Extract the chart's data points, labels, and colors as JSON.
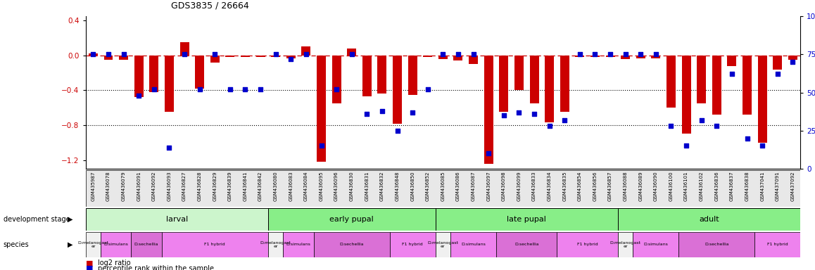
{
  "title": "GDS3835 / 26664",
  "samples": [
    "GSM435987",
    "GSM436078",
    "GSM436079",
    "GSM436091",
    "GSM436092",
    "GSM436093",
    "GSM436827",
    "GSM436828",
    "GSM436829",
    "GSM436839",
    "GSM436841",
    "GSM436842",
    "GSM436080",
    "GSM436083",
    "GSM436084",
    "GSM436095",
    "GSM436096",
    "GSM436830",
    "GSM436831",
    "GSM436832",
    "GSM436848",
    "GSM436850",
    "GSM436852",
    "GSM436085",
    "GSM436086",
    "GSM436087",
    "GSM436097",
    "GSM436098",
    "GSM436099",
    "GSM436833",
    "GSM436834",
    "GSM436835",
    "GSM436854",
    "GSM436856",
    "GSM436857",
    "GSM436088",
    "GSM436089",
    "GSM436090",
    "GSM436100",
    "GSM436101",
    "GSM436102",
    "GSM436836",
    "GSM436837",
    "GSM436838",
    "GSM437041",
    "GSM437091",
    "GSM437092"
  ],
  "log2_ratio": [
    0.02,
    -0.05,
    -0.05,
    -0.48,
    -0.42,
    -0.65,
    0.15,
    -0.38,
    -0.08,
    -0.02,
    -0.02,
    -0.02,
    -0.02,
    -0.03,
    0.1,
    -1.22,
    -0.55,
    0.08,
    -0.47,
    -0.44,
    -0.78,
    -0.45,
    -0.02,
    -0.04,
    -0.06,
    -0.1,
    -1.24,
    -0.65,
    -0.4,
    -0.55,
    -0.77,
    -0.65,
    -0.02,
    -0.02,
    -0.02,
    -0.04,
    -0.03,
    -0.03,
    -0.6,
    -0.9,
    -0.55,
    -0.68,
    -0.12,
    -0.68,
    -1.0,
    -0.16,
    -0.05
  ],
  "percentile": [
    75,
    75,
    75,
    48,
    52,
    14,
    75,
    52,
    75,
    52,
    52,
    52,
    75,
    72,
    75,
    15,
    52,
    75,
    36,
    38,
    25,
    37,
    52,
    75,
    75,
    75,
    10,
    35,
    37,
    36,
    28,
    32,
    75,
    75,
    75,
    75,
    75,
    75,
    28,
    15,
    32,
    28,
    62,
    20,
    15,
    62,
    70
  ],
  "ylim_left": [
    -1.3,
    0.45
  ],
  "ylim_right": [
    0,
    100
  ],
  "yticks_left": [
    0.4,
    0.0,
    -0.4,
    -0.8,
    -1.2
  ],
  "yticks_right": [
    100,
    75,
    50,
    25,
    0
  ],
  "bar_color": "#cc0000",
  "scatter_color": "#0000cc",
  "development_stages": [
    {
      "label": "larval",
      "start": 0,
      "end": 11,
      "color": "#ccf5cc"
    },
    {
      "label": "early pupal",
      "start": 12,
      "end": 22,
      "color": "#88ee88"
    },
    {
      "label": "late pupal",
      "start": 23,
      "end": 34,
      "color": "#88ee88"
    },
    {
      "label": "adult",
      "start": 35,
      "end": 46,
      "color": "#88ee88"
    }
  ],
  "species_blocks": [
    {
      "label": "D.melanogast\ner",
      "start": 0,
      "end": 0,
      "color": "#f0f0f0"
    },
    {
      "label": "D.simulans",
      "start": 1,
      "end": 2,
      "color": "#ee82ee"
    },
    {
      "label": "D.sechellia",
      "start": 3,
      "end": 4,
      "color": "#da70d6"
    },
    {
      "label": "F1 hybrid",
      "start": 5,
      "end": 11,
      "color": "#ee82ee"
    },
    {
      "label": "D.melanogast\ner",
      "start": 12,
      "end": 12,
      "color": "#f0f0f0"
    },
    {
      "label": "D.simulans",
      "start": 13,
      "end": 14,
      "color": "#ee82ee"
    },
    {
      "label": "D.sechellia",
      "start": 15,
      "end": 19,
      "color": "#da70d6"
    },
    {
      "label": "F1 hybrid",
      "start": 20,
      "end": 22,
      "color": "#ee82ee"
    },
    {
      "label": "D.melanogast\ner",
      "start": 23,
      "end": 23,
      "color": "#f0f0f0"
    },
    {
      "label": "D.simulans",
      "start": 24,
      "end": 26,
      "color": "#ee82ee"
    },
    {
      "label": "D.sechellia",
      "start": 27,
      "end": 30,
      "color": "#da70d6"
    },
    {
      "label": "F1 hybrid",
      "start": 31,
      "end": 34,
      "color": "#ee82ee"
    },
    {
      "label": "D.melanogast\ner",
      "start": 35,
      "end": 35,
      "color": "#f0f0f0"
    },
    {
      "label": "D.simulans",
      "start": 36,
      "end": 38,
      "color": "#ee82ee"
    },
    {
      "label": "D.sechellia",
      "start": 39,
      "end": 43,
      "color": "#da70d6"
    },
    {
      "label": "F1 hybrid",
      "start": 44,
      "end": 46,
      "color": "#ee82ee"
    }
  ],
  "dev_stage_label": "development stage",
  "species_label": "species",
  "legend_log2": "log2 ratio",
  "legend_pct": "percentile rank within the sample"
}
